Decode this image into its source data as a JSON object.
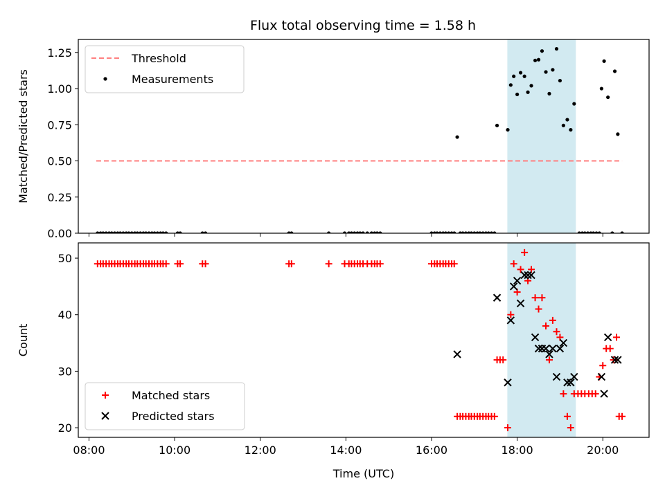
{
  "title": "Flux total observing time = 1.58 h",
  "colors": {
    "threshold": "#ff7f7f",
    "measurement": "#000000",
    "matched": "#ff0000",
    "predicted": "#000000",
    "highlight": "#add8e6"
  },
  "chart_data": [
    {
      "type": "scatter",
      "ylabel": "Matched/Predicted stars",
      "xlabel": "",
      "xlim": [
        7.75,
        21.08
      ],
      "ylim": [
        0,
        1.34
      ],
      "yticks": [
        0,
        0.25,
        0.5,
        0.75,
        1.0,
        1.25
      ],
      "ytick_labels": [
        "0.00",
        "0.25",
        "0.50",
        "0.75",
        "1.00",
        "1.25"
      ],
      "grid": false,
      "legend_position": "top-left",
      "highlight_span": [
        17.77,
        19.37
      ],
      "threshold": {
        "name": "Threshold",
        "y": 0.5,
        "x_range": [
          8.17,
          20.45
        ],
        "style": "dashed"
      },
      "series": [
        {
          "name": "Measurements",
          "marker": "dot",
          "points": [
            [
              8.2,
              0
            ],
            [
              8.27,
              0
            ],
            [
              8.33,
              0
            ],
            [
              8.4,
              0
            ],
            [
              8.47,
              0
            ],
            [
              8.53,
              0
            ],
            [
              8.6,
              0
            ],
            [
              8.67,
              0
            ],
            [
              8.73,
              0
            ],
            [
              8.8,
              0
            ],
            [
              8.87,
              0
            ],
            [
              8.93,
              0
            ],
            [
              9.0,
              0
            ],
            [
              9.07,
              0
            ],
            [
              9.13,
              0
            ],
            [
              9.2,
              0
            ],
            [
              9.27,
              0
            ],
            [
              9.33,
              0
            ],
            [
              9.4,
              0
            ],
            [
              9.47,
              0
            ],
            [
              9.53,
              0
            ],
            [
              9.6,
              0
            ],
            [
              9.67,
              0
            ],
            [
              9.73,
              0
            ],
            [
              9.8,
              0
            ],
            [
              10.07,
              0
            ],
            [
              10.13,
              0
            ],
            [
              10.65,
              0
            ],
            [
              10.72,
              0
            ],
            [
              12.67,
              0
            ],
            [
              12.73,
              0
            ],
            [
              13.6,
              0
            ],
            [
              13.97,
              0
            ],
            [
              14.07,
              0
            ],
            [
              14.13,
              0
            ],
            [
              14.2,
              0
            ],
            [
              14.27,
              0
            ],
            [
              14.33,
              0
            ],
            [
              14.4,
              0
            ],
            [
              14.5,
              0
            ],
            [
              14.6,
              0
            ],
            [
              14.67,
              0
            ],
            [
              14.73,
              0
            ],
            [
              14.8,
              0
            ],
            [
              16.0,
              0
            ],
            [
              16.07,
              0
            ],
            [
              16.13,
              0
            ],
            [
              16.2,
              0
            ],
            [
              16.27,
              0
            ],
            [
              16.33,
              0
            ],
            [
              16.4,
              0
            ],
            [
              16.47,
              0
            ],
            [
              16.53,
              0
            ],
            [
              16.67,
              0
            ],
            [
              16.73,
              0
            ],
            [
              16.8,
              0
            ],
            [
              16.87,
              0
            ],
            [
              16.93,
              0
            ],
            [
              17.0,
              0
            ],
            [
              17.07,
              0
            ],
            [
              17.13,
              0
            ],
            [
              17.2,
              0
            ],
            [
              17.27,
              0
            ],
            [
              17.33,
              0
            ],
            [
              17.4,
              0
            ],
            [
              17.47,
              0
            ],
            [
              19.45,
              0
            ],
            [
              19.52,
              0
            ],
            [
              19.58,
              0
            ],
            [
              19.65,
              0
            ],
            [
              19.72,
              0
            ],
            [
              19.78,
              0
            ],
            [
              19.85,
              0
            ],
            [
              19.92,
              0
            ],
            [
              20.22,
              0
            ],
            [
              20.45,
              0
            ],
            [
              16.6,
              0.665
            ],
            [
              17.53,
              0.745
            ],
            [
              17.78,
              0.715
            ],
            [
              17.85,
              1.025
            ],
            [
              17.92,
              1.085
            ],
            [
              18.0,
              0.96
            ],
            [
              18.08,
              1.11
            ],
            [
              18.17,
              1.085
            ],
            [
              18.25,
              0.975
            ],
            [
              18.33,
              1.02
            ],
            [
              18.42,
              1.195
            ],
            [
              18.5,
              1.2
            ],
            [
              18.58,
              1.26
            ],
            [
              18.67,
              1.115
            ],
            [
              18.75,
              0.965
            ],
            [
              18.83,
              1.13
            ],
            [
              18.92,
              1.275
            ],
            [
              19.0,
              1.055
            ],
            [
              19.08,
              0.745
            ],
            [
              19.17,
              0.785
            ],
            [
              19.25,
              0.715
            ],
            [
              19.33,
              0.895
            ],
            [
              19.97,
              1.0
            ],
            [
              20.03,
              1.19
            ],
            [
              20.12,
              0.94
            ],
            [
              20.28,
              1.12
            ],
            [
              20.35,
              0.685
            ]
          ]
        }
      ]
    },
    {
      "type": "scatter",
      "ylabel": "Count",
      "xlabel": "Time (UTC)",
      "xlim": [
        7.75,
        21.08
      ],
      "ylim": [
        18.3,
        52.7
      ],
      "yticks": [
        20,
        30,
        40,
        50
      ],
      "ytick_labels": [
        "20",
        "30",
        "40",
        "50"
      ],
      "xticks": [
        8,
        10,
        12,
        14,
        16,
        18,
        20
      ],
      "xtick_labels": [
        "08:00",
        "10:00",
        "12:00",
        "14:00",
        "16:00",
        "18:00",
        "20:00"
      ],
      "grid": false,
      "legend_position": "bottom-left",
      "highlight_span": [
        17.77,
        19.37
      ],
      "series": [
        {
          "name": "Matched stars",
          "marker": "plus",
          "points": [
            [
              8.2,
              49
            ],
            [
              8.27,
              49
            ],
            [
              8.33,
              49
            ],
            [
              8.4,
              49
            ],
            [
              8.47,
              49
            ],
            [
              8.53,
              49
            ],
            [
              8.6,
              49
            ],
            [
              8.67,
              49
            ],
            [
              8.73,
              49
            ],
            [
              8.8,
              49
            ],
            [
              8.87,
              49
            ],
            [
              8.93,
              49
            ],
            [
              9.0,
              49
            ],
            [
              9.07,
              49
            ],
            [
              9.13,
              49
            ],
            [
              9.2,
              49
            ],
            [
              9.27,
              49
            ],
            [
              9.33,
              49
            ],
            [
              9.4,
              49
            ],
            [
              9.47,
              49
            ],
            [
              9.53,
              49
            ],
            [
              9.6,
              49
            ],
            [
              9.67,
              49
            ],
            [
              9.73,
              49
            ],
            [
              9.8,
              49
            ],
            [
              10.07,
              49
            ],
            [
              10.13,
              49
            ],
            [
              10.65,
              49
            ],
            [
              10.72,
              49
            ],
            [
              12.67,
              49
            ],
            [
              12.73,
              49
            ],
            [
              13.6,
              49
            ],
            [
              13.97,
              49
            ],
            [
              14.07,
              49
            ],
            [
              14.13,
              49
            ],
            [
              14.2,
              49
            ],
            [
              14.27,
              49
            ],
            [
              14.33,
              49
            ],
            [
              14.4,
              49
            ],
            [
              14.5,
              49
            ],
            [
              14.6,
              49
            ],
            [
              14.67,
              49
            ],
            [
              14.73,
              49
            ],
            [
              14.8,
              49
            ],
            [
              16.0,
              49
            ],
            [
              16.07,
              49
            ],
            [
              16.13,
              49
            ],
            [
              16.2,
              49
            ],
            [
              16.27,
              49
            ],
            [
              16.33,
              49
            ],
            [
              16.4,
              49
            ],
            [
              16.47,
              49
            ],
            [
              16.53,
              49
            ],
            [
              16.6,
              22
            ],
            [
              16.67,
              22
            ],
            [
              16.73,
              22
            ],
            [
              16.8,
              22
            ],
            [
              16.87,
              22
            ],
            [
              16.93,
              22
            ],
            [
              17.0,
              22
            ],
            [
              17.07,
              22
            ],
            [
              17.13,
              22
            ],
            [
              17.2,
              22
            ],
            [
              17.27,
              22
            ],
            [
              17.33,
              22
            ],
            [
              17.4,
              22
            ],
            [
              17.47,
              22
            ],
            [
              17.53,
              32
            ],
            [
              17.6,
              32
            ],
            [
              17.67,
              32
            ],
            [
              17.78,
              20
            ],
            [
              17.85,
              40
            ],
            [
              17.92,
              49
            ],
            [
              18.0,
              44
            ],
            [
              18.08,
              48
            ],
            [
              18.17,
              51
            ],
            [
              18.25,
              46
            ],
            [
              18.33,
              48
            ],
            [
              18.42,
              43
            ],
            [
              18.5,
              41
            ],
            [
              18.58,
              43
            ],
            [
              18.67,
              38
            ],
            [
              18.75,
              32
            ],
            [
              18.83,
              39
            ],
            [
              18.92,
              37
            ],
            [
              19.0,
              36
            ],
            [
              19.08,
              26
            ],
            [
              19.17,
              22
            ],
            [
              19.25,
              20
            ],
            [
              19.33,
              26
            ],
            [
              19.42,
              26
            ],
            [
              19.5,
              26
            ],
            [
              19.58,
              26
            ],
            [
              19.67,
              26
            ],
            [
              19.75,
              26
            ],
            [
              19.83,
              26
            ],
            [
              19.92,
              29
            ],
            [
              20.0,
              31
            ],
            [
              20.08,
              34
            ],
            [
              20.17,
              34
            ],
            [
              20.25,
              32
            ],
            [
              20.32,
              36
            ],
            [
              20.38,
              22
            ],
            [
              20.45,
              22
            ]
          ]
        },
        {
          "name": "Predicted stars",
          "marker": "x",
          "points": [
            [
              16.6,
              33
            ],
            [
              17.53,
              43
            ],
            [
              17.78,
              28
            ],
            [
              17.85,
              39
            ],
            [
              17.92,
              45
            ],
            [
              18.0,
              46
            ],
            [
              18.08,
              42
            ],
            [
              18.17,
              47
            ],
            [
              18.25,
              47
            ],
            [
              18.33,
              47
            ],
            [
              18.42,
              36
            ],
            [
              18.5,
              34
            ],
            [
              18.58,
              34
            ],
            [
              18.67,
              34
            ],
            [
              18.75,
              33
            ],
            [
              18.83,
              34
            ],
            [
              18.92,
              29
            ],
            [
              19.0,
              34
            ],
            [
              19.08,
              35
            ],
            [
              19.17,
              28
            ],
            [
              19.25,
              28
            ],
            [
              19.33,
              29
            ],
            [
              19.97,
              29
            ],
            [
              20.03,
              26
            ],
            [
              20.12,
              36
            ],
            [
              20.28,
              32
            ],
            [
              20.35,
              32
            ]
          ]
        }
      ]
    }
  ]
}
